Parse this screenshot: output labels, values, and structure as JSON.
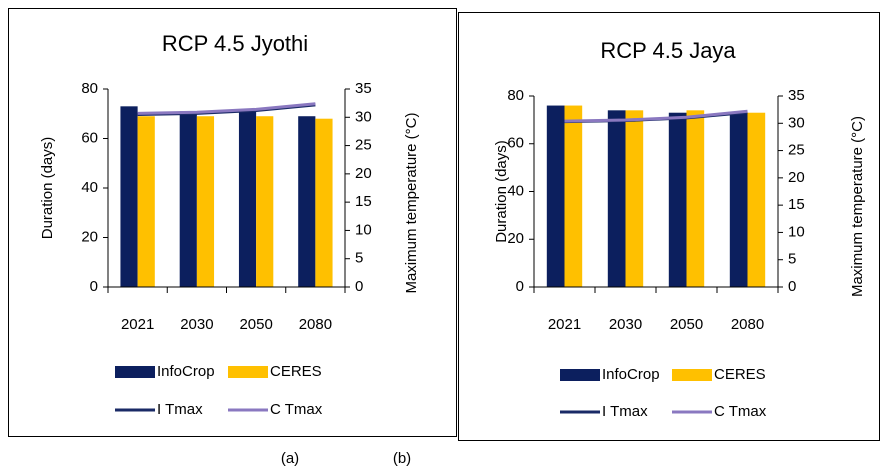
{
  "chart_data": [
    {
      "type": "bar",
      "title": "RCP 4.5 Jyothi",
      "ylabel": "Duration (days)",
      "y2label": "Maximum temperature (°C)",
      "categories": [
        "2021",
        "2030",
        "2050",
        "2080"
      ],
      "series": [
        {
          "name": "InfoCrop",
          "color": "#0c1f5e",
          "values": [
            73,
            71,
            71,
            69
          ]
        },
        {
          "name": "CERES",
          "color": "#ffc000",
          "values": [
            69,
            69,
            69,
            68
          ]
        },
        {
          "name": "I Tmax",
          "color": "#1a2a66",
          "type": "line",
          "axis": "y2",
          "values": [
            30.5,
            30.7,
            31.2,
            32.2
          ]
        },
        {
          "name": "C Tmax",
          "color": "#8a78c0",
          "type": "line",
          "axis": "y2",
          "values": [
            30.7,
            30.9,
            31.4,
            32.4
          ]
        }
      ],
      "ylim": [
        0,
        80
      ],
      "yticks": [
        0,
        20,
        40,
        60,
        80
      ],
      "y2lim": [
        0,
        35
      ],
      "y2ticks": [
        0,
        5,
        10,
        15,
        20,
        25,
        30,
        35
      ]
    },
    {
      "type": "bar",
      "title": "RCP 4.5 Jaya",
      "ylabel": "Duration (days)",
      "y2label": "Maximum temperature (°C)",
      "categories": [
        "2021",
        "2030",
        "2050",
        "2080"
      ],
      "series": [
        {
          "name": "InfoCrop",
          "color": "#0c1f5e",
          "values": [
            76,
            74,
            73,
            73
          ]
        },
        {
          "name": "CERES",
          "color": "#ffc000",
          "values": [
            76,
            74,
            74,
            73
          ]
        },
        {
          "name": "I Tmax",
          "color": "#1a2a66",
          "type": "line",
          "axis": "y2",
          "values": [
            30.3,
            30.5,
            31.0,
            32.0
          ]
        },
        {
          "name": "C Tmax",
          "color": "#8a78c0",
          "type": "line",
          "axis": "y2",
          "values": [
            30.4,
            30.6,
            31.1,
            32.2
          ]
        }
      ],
      "ylim": [
        0,
        80
      ],
      "yticks": [
        0,
        20,
        40,
        60,
        80
      ],
      "y2lim": [
        0,
        35
      ],
      "y2ticks": [
        0,
        5,
        10,
        15,
        20,
        25,
        30,
        35
      ]
    }
  ],
  "captions": [
    "(a)",
    "(b)"
  ]
}
